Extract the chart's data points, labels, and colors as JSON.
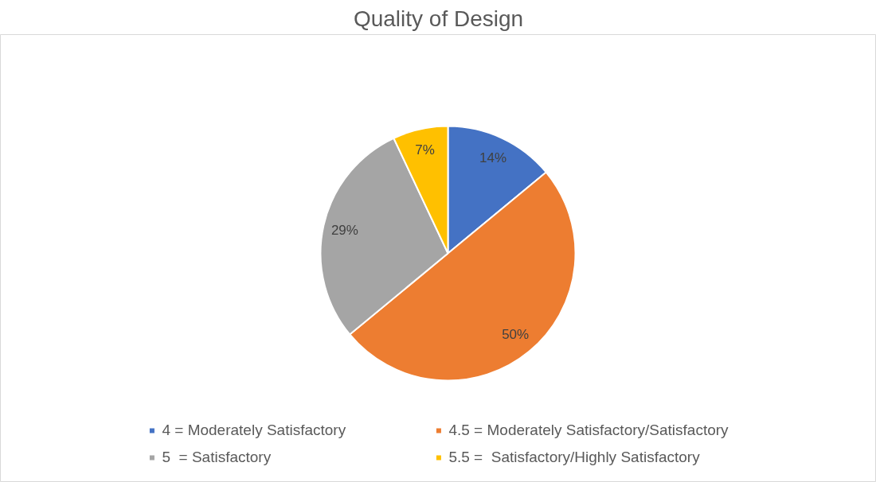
{
  "chart_data": {
    "type": "pie",
    "title": "Quality of Design",
    "categories": [
      "4 = Moderately Satisfactory",
      "4.5 = Moderately Satisfactory/Satisfactory",
      "5  = Satisfactory",
      "5.5 =  Satisfactory/Highly Satisfactory"
    ],
    "values": [
      14,
      50,
      29,
      7
    ],
    "colors": [
      "#4472c4",
      "#ed7d31",
      "#a5a5a5",
      "#ffc000"
    ],
    "value_labels": [
      "14%",
      "50%",
      "29%",
      "7%"
    ],
    "legend": "bottom"
  }
}
